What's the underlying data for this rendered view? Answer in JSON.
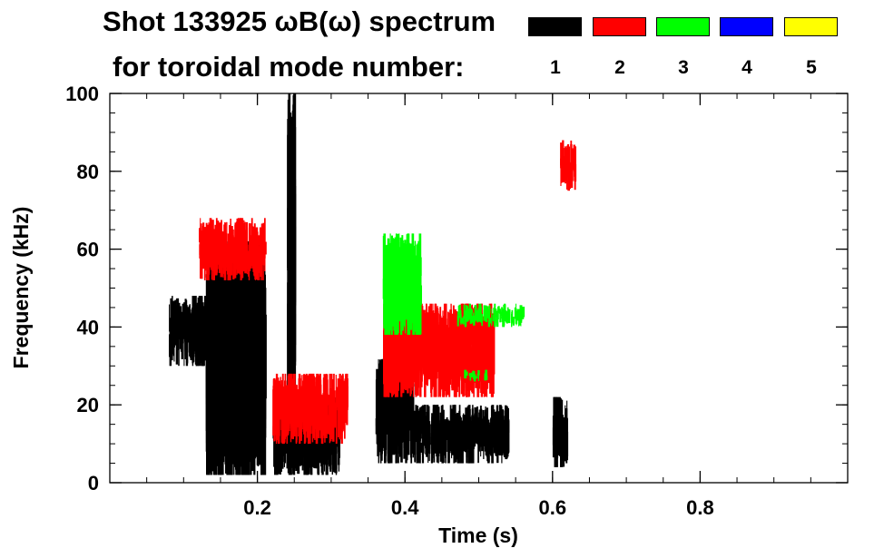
{
  "chart_data": {
    "type": "heatmap",
    "title": "Shot 133925 ωB(ω) spectrum",
    "subtitle": "for toroidal mode number:",
    "xlabel": "Time (s)",
    "ylabel": "Frequency (kHz)",
    "xlim": [
      0.0,
      1.0
    ],
    "ylim": [
      0,
      100
    ],
    "x_ticks": [
      0.2,
      0.4,
      0.6,
      0.8
    ],
    "x_tick_labels": [
      "0.2",
      "0.4",
      "0.6",
      "0.8"
    ],
    "y_ticks": [
      0,
      20,
      40,
      60,
      80,
      100
    ],
    "y_tick_labels": [
      "0",
      "20",
      "40",
      "60",
      "80",
      "100"
    ],
    "grid": false,
    "legend_position": "top-right",
    "legend": [
      {
        "label": "1",
        "color": "#000000"
      },
      {
        "label": "2",
        "color": "#ff0000"
      },
      {
        "label": "3",
        "color": "#00ff00"
      },
      {
        "label": "4",
        "color": "#0000ff"
      },
      {
        "label": "5",
        "color": "#ffff00"
      }
    ],
    "series": [
      {
        "mode": "1",
        "color": "#000000",
        "regions": [
          {
            "t": [
              0.08,
              0.13
            ],
            "f": [
              30,
              48
            ]
          },
          {
            "t": [
              0.13,
              0.21
            ],
            "f": [
              2,
              62
            ]
          },
          {
            "t": [
              0.22,
              0.31
            ],
            "f": [
              2,
              22
            ]
          },
          {
            "t": [
              0.24,
              0.25
            ],
            "f": [
              2,
              100
            ]
          },
          {
            "t": [
              0.36,
              0.41
            ],
            "f": [
              5,
              32
            ]
          },
          {
            "t": [
              0.41,
              0.54
            ],
            "f": [
              5,
              20
            ]
          },
          {
            "t": [
              0.6,
              0.62
            ],
            "f": [
              4,
              22
            ]
          }
        ]
      },
      {
        "mode": "2",
        "color": "#ff0000",
        "regions": [
          {
            "t": [
              0.12,
              0.21
            ],
            "f": [
              52,
              68
            ]
          },
          {
            "t": [
              0.22,
              0.32
            ],
            "f": [
              10,
              28
            ]
          },
          {
            "t": [
              0.37,
              0.52
            ],
            "f": [
              22,
              46
            ]
          },
          {
            "t": [
              0.61,
              0.63
            ],
            "f": [
              75,
              88
            ]
          }
        ]
      },
      {
        "mode": "3",
        "color": "#00ff00",
        "regions": [
          {
            "t": [
              0.37,
              0.42
            ],
            "f": [
              38,
              64
            ]
          },
          {
            "t": [
              0.47,
              0.56
            ],
            "f": [
              40,
              46
            ]
          },
          {
            "t": [
              0.48,
              0.51
            ],
            "f": [
              26,
              29
            ]
          }
        ]
      }
    ]
  }
}
